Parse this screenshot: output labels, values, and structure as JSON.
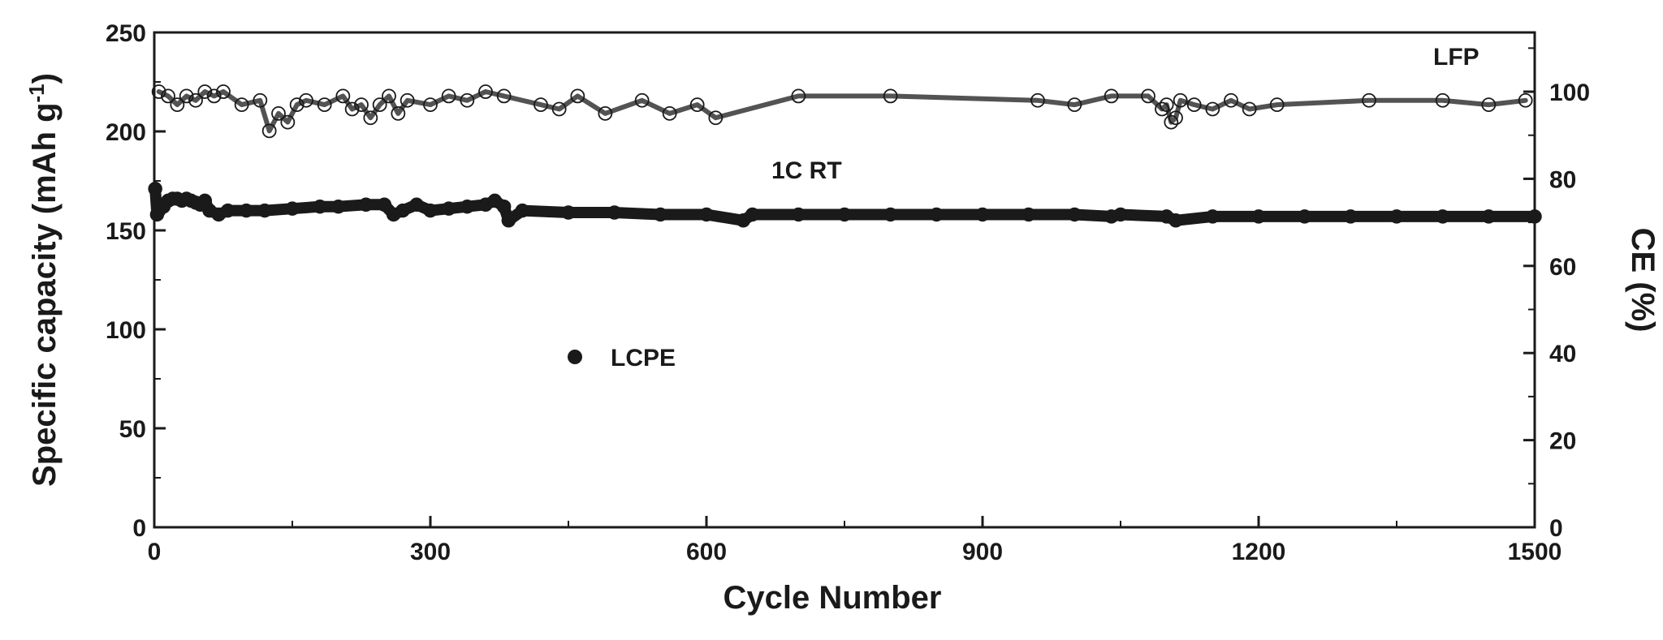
{
  "chart_data": {
    "type": "scatter",
    "xlabel": "Cycle Number",
    "ylabel": "Specific capacity (mAh g",
    "ylabel_sup": "-1",
    "ylabel_close": ")",
    "y2label": "CE (%)",
    "xlim": [
      0,
      1500
    ],
    "ylim": [
      0,
      250
    ],
    "y2lim": [
      0,
      113.6
    ],
    "xticks": [
      0,
      300,
      600,
      900,
      1200,
      1500
    ],
    "yticks": [
      0,
      50,
      100,
      150,
      200,
      250
    ],
    "y2ticks": [
      0,
      20,
      40,
      60,
      80,
      100
    ],
    "grid": false,
    "annotations": {
      "cell": "LFP",
      "condition": "1C  RT",
      "legend": "LCPE"
    },
    "series": [
      {
        "name": "LCPE",
        "axis": "left",
        "marker": "filled-circle",
        "x": [
          1,
          3,
          5,
          10,
          15,
          20,
          25,
          30,
          35,
          40,
          45,
          50,
          55,
          60,
          70,
          80,
          100,
          120,
          150,
          180,
          200,
          230,
          250,
          260,
          270,
          285,
          300,
          320,
          340,
          360,
          370,
          380,
          385,
          400,
          450,
          500,
          550,
          600,
          640,
          650,
          700,
          750,
          800,
          850,
          900,
          950,
          1000,
          1040,
          1050,
          1100,
          1110,
          1150,
          1200,
          1250,
          1300,
          1350,
          1400,
          1450,
          1500
        ],
        "y": [
          171,
          158,
          160,
          162,
          165,
          166,
          166,
          165,
          166,
          165,
          164,
          163,
          165,
          160,
          158,
          160,
          160,
          160,
          161,
          162,
          162,
          163,
          163,
          158,
          160,
          163,
          160,
          161,
          162,
          163,
          165,
          162,
          155,
          160,
          159,
          159,
          158,
          158,
          155,
          158,
          158,
          158,
          158,
          158,
          158,
          158,
          158,
          157,
          158,
          157,
          155,
          157,
          157,
          157,
          157,
          157,
          157,
          157,
          157
        ]
      },
      {
        "name": "CE",
        "axis": "right",
        "marker": "open-circle",
        "x": [
          5,
          15,
          25,
          35,
          45,
          55,
          65,
          75,
          95,
          115,
          125,
          135,
          145,
          155,
          165,
          185,
          205,
          215,
          225,
          235,
          245,
          255,
          265,
          275,
          300,
          320,
          340,
          360,
          380,
          420,
          440,
          460,
          490,
          530,
          560,
          590,
          610,
          700,
          800,
          960,
          1000,
          1040,
          1080,
          1095,
          1100,
          1105,
          1110,
          1115,
          1130,
          1150,
          1170,
          1190,
          1220,
          1320,
          1400,
          1450,
          1490
        ],
        "y": [
          100,
          99,
          97,
          99,
          98,
          100,
          99,
          100,
          97,
          98,
          91,
          95,
          93,
          97,
          98,
          97,
          99,
          96,
          97,
          94,
          97,
          99,
          95,
          98,
          97,
          99,
          98,
          100,
          99,
          97,
          96,
          99,
          95,
          98,
          95,
          97,
          94,
          99,
          99,
          98,
          97,
          99,
          99,
          96,
          97,
          93,
          94,
          98,
          97,
          96,
          98,
          96,
          97,
          98,
          98,
          97,
          98
        ]
      }
    ]
  }
}
